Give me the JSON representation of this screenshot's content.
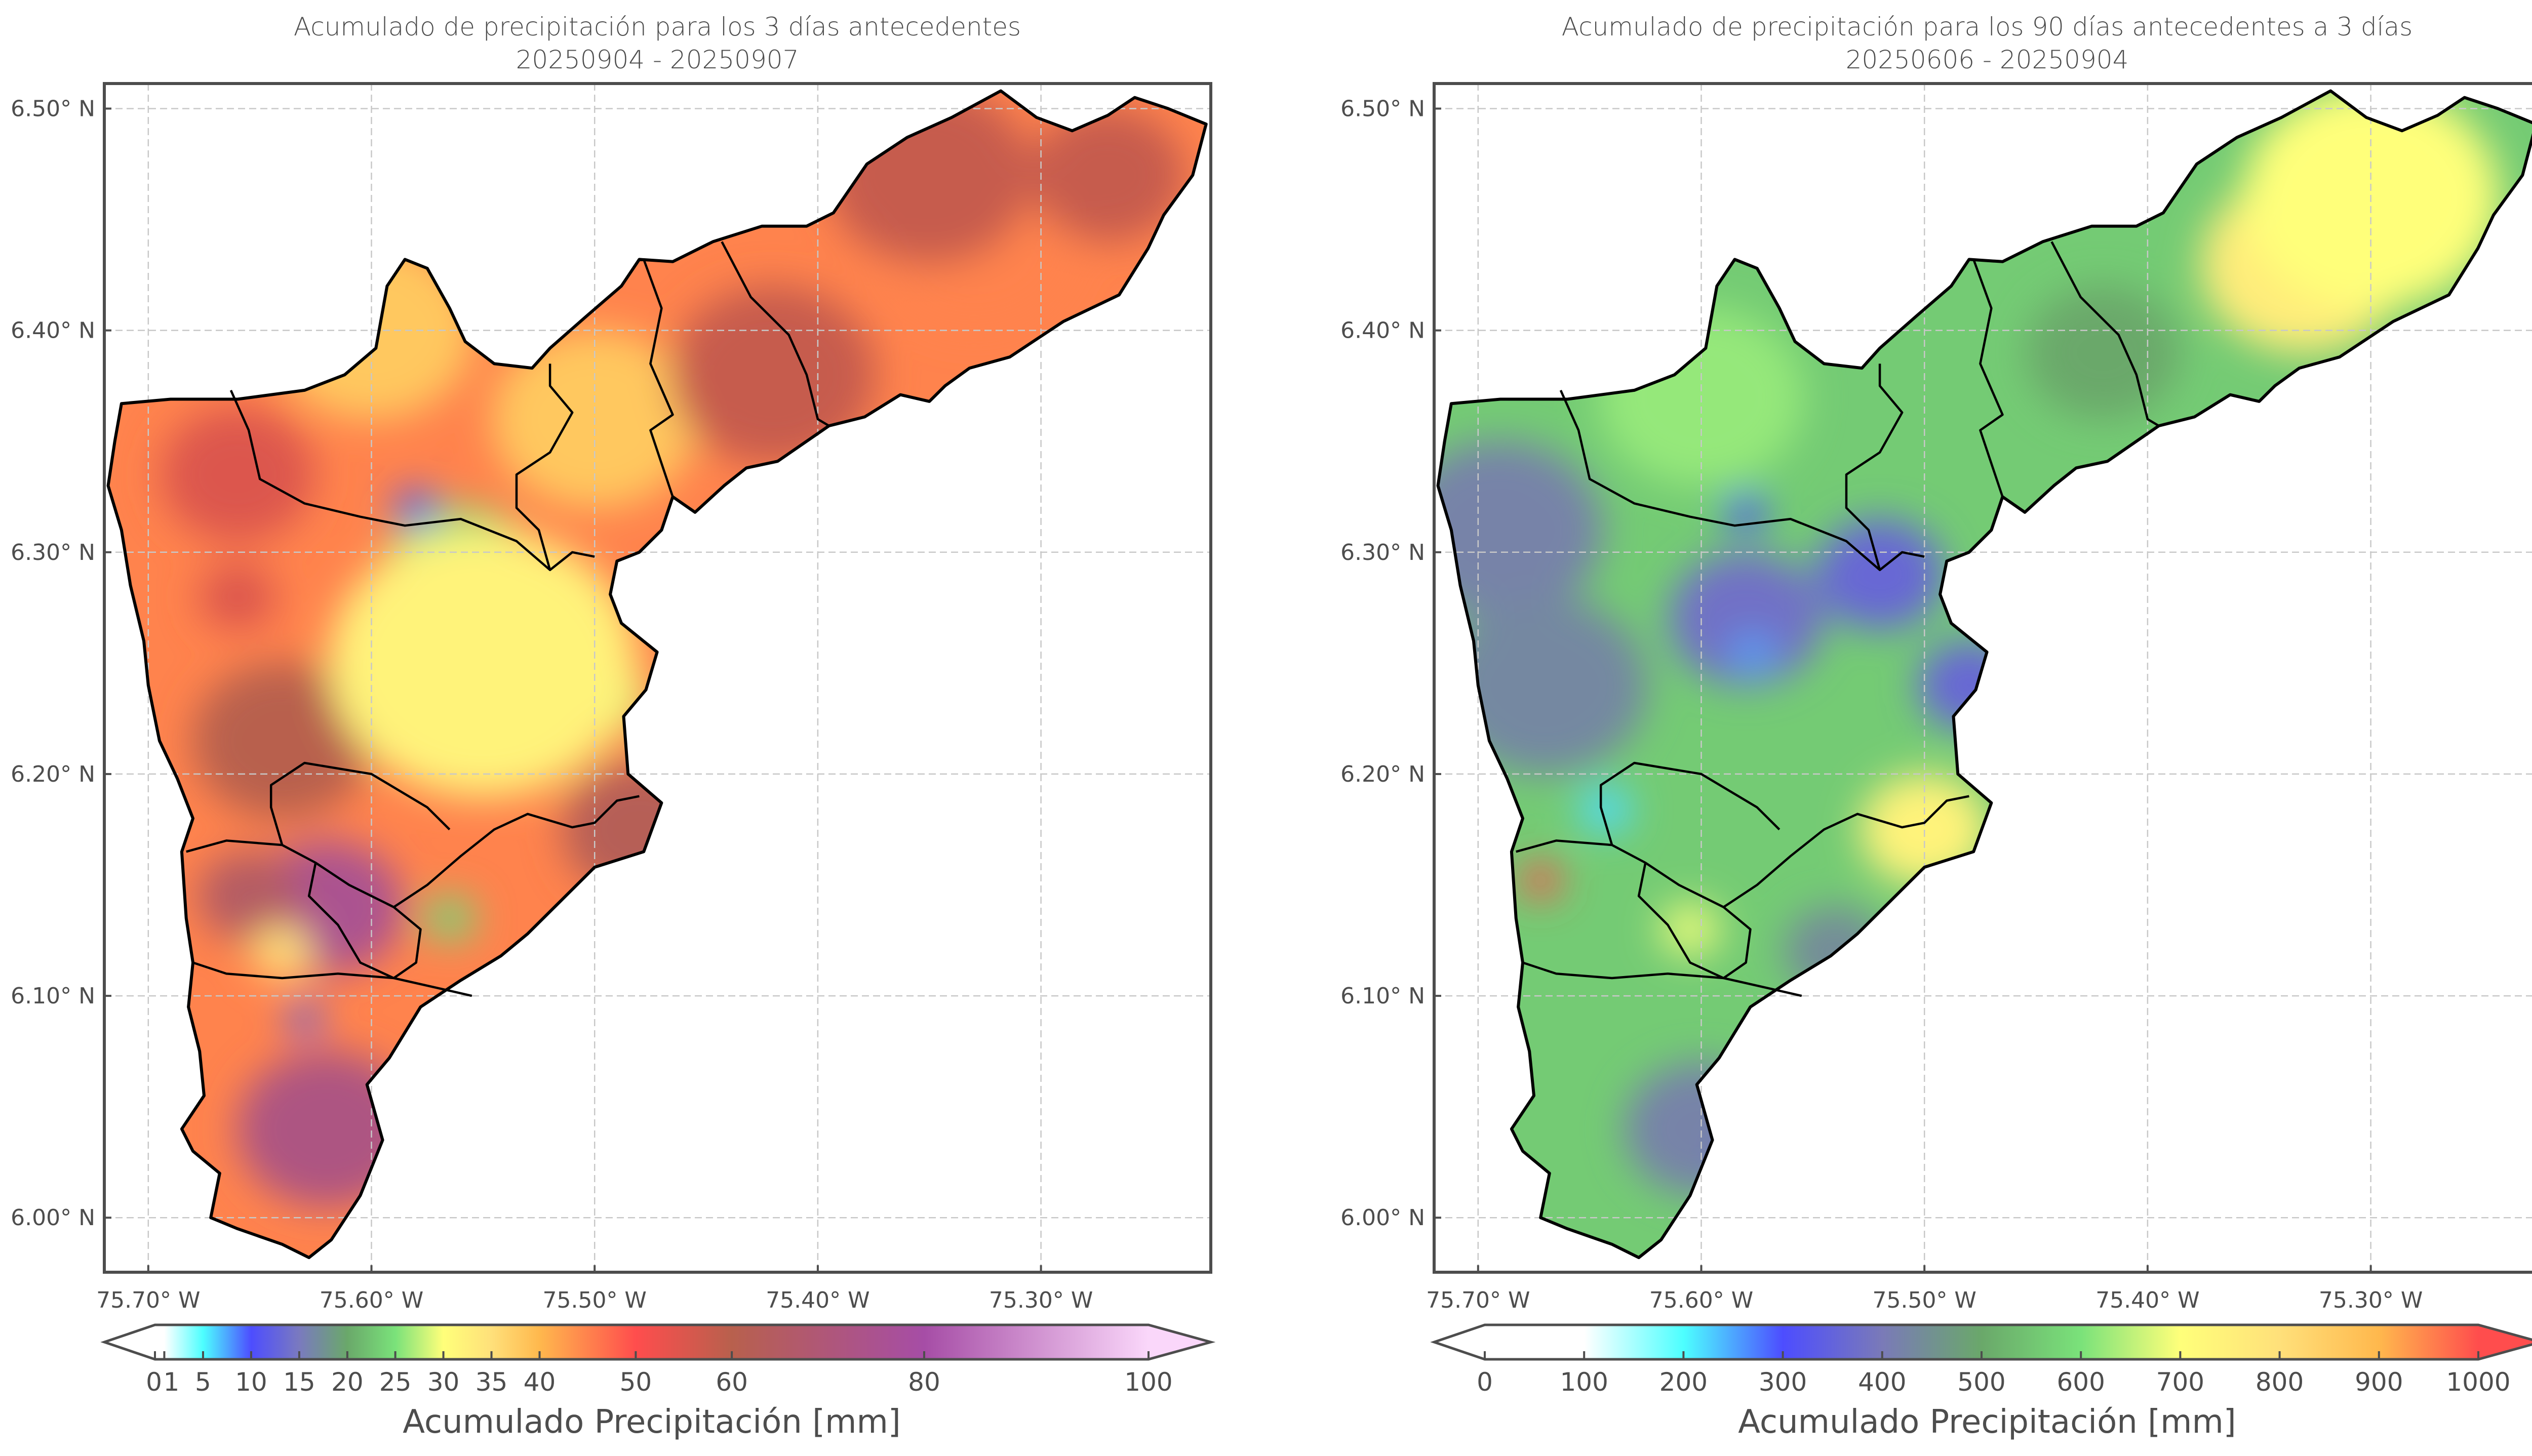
{
  "chart_data": [
    {
      "type": "heatmap",
      "panel": "left",
      "title": "Acumulado de precipitación para los 3 días antecedentes",
      "subtitle": "20250904 - 20250907",
      "xlabel": "",
      "ylabel": "",
      "xlim": [
        -75.7197,
        -75.2239
      ],
      "ylim": [
        5.9754,
        6.5113
      ],
      "x_ticks": [
        -75.7,
        -75.6,
        -75.5,
        -75.4,
        -75.3
      ],
      "x_tick_labels": [
        "75.70° W",
        "75.60° W",
        "75.50° W",
        "75.40° W",
        "75.30° W"
      ],
      "y_ticks": [
        6.5,
        6.4,
        6.3,
        6.2,
        6.1,
        6.0
      ],
      "y_tick_labels": [
        "6.50° N",
        "6.40° N",
        "6.30° N",
        "6.20° N",
        "6.10° N",
        "6.00° N"
      ],
      "grid": true,
      "colorbar": {
        "label": "Acumulado Precipitación [mm]",
        "extend": "both",
        "range": [
          0,
          100
        ],
        "ticks": [
          0,
          1,
          5,
          10,
          15,
          20,
          25,
          30,
          35,
          40,
          50,
          60,
          80,
          100
        ],
        "tick_labels": [
          "0",
          "1",
          "5",
          "10",
          "15",
          "20",
          "25",
          "30",
          "35",
          "40",
          "50",
          "60",
          "80",
          "100"
        ],
        "stops": [
          {
            "v": 0,
            "c": "#ffffff"
          },
          {
            "v": 1,
            "c": "#ffffff"
          },
          {
            "v": 5,
            "c": "#4dffff"
          },
          {
            "v": 10,
            "c": "#4d4dff"
          },
          {
            "v": 15,
            "c": "#7a7abf"
          },
          {
            "v": 20,
            "c": "#6aa86a"
          },
          {
            "v": 25,
            "c": "#7ae27a"
          },
          {
            "v": 30,
            "c": "#ffff7a"
          },
          {
            "v": 35,
            "c": "#ffe07a"
          },
          {
            "v": 40,
            "c": "#ffb84d"
          },
          {
            "v": 50,
            "c": "#ff4d4d"
          },
          {
            "v": 60,
            "c": "#b8604d"
          },
          {
            "v": 80,
            "c": "#a64da6"
          },
          {
            "v": 100,
            "c": "#fad7fa"
          }
        ],
        "over_color": "#fad7fa",
        "under_color": "#ffffff"
      },
      "field_background_mm": 45,
      "field_features": [
        {
          "lon": -75.66,
          "lat": 6.335,
          "mm": 55,
          "r": 0.03
        },
        {
          "lon": -75.66,
          "lat": 6.28,
          "mm": 55,
          "r": 0.015
        },
        {
          "lon": -75.64,
          "lat": 6.215,
          "mm": 60,
          "r": 0.035
        },
        {
          "lon": -75.56,
          "lat": 6.29,
          "mm": 25,
          "r": 0.03
        },
        {
          "lon": -75.555,
          "lat": 6.26,
          "mm": 22,
          "r": 0.025
        },
        {
          "lon": -75.58,
          "lat": 6.32,
          "mm": 10,
          "r": 0.008
        },
        {
          "lon": -75.56,
          "lat": 6.23,
          "mm": 28,
          "r": 0.02
        },
        {
          "lon": -75.5,
          "lat": 6.235,
          "mm": 28,
          "r": 0.02
        },
        {
          "lon": -75.55,
          "lat": 6.25,
          "mm": 32,
          "r": 0.06
        },
        {
          "lon": -75.6,
          "lat": 6.4,
          "mm": 38,
          "r": 0.04
        },
        {
          "lon": -75.5,
          "lat": 6.36,
          "mm": 38,
          "r": 0.04
        },
        {
          "lon": -75.42,
          "lat": 6.38,
          "mm": 58,
          "r": 0.04
        },
        {
          "lon": -75.33,
          "lat": 6.44,
          "mm": 45,
          "r": 0.04
        },
        {
          "lon": -75.35,
          "lat": 6.47,
          "mm": 58,
          "r": 0.04
        },
        {
          "lon": -75.27,
          "lat": 6.47,
          "mm": 58,
          "r": 0.03
        },
        {
          "lon": -75.62,
          "lat": 6.14,
          "mm": 75,
          "r": 0.03
        },
        {
          "lon": -75.655,
          "lat": 6.145,
          "mm": 65,
          "r": 0.02
        },
        {
          "lon": -75.48,
          "lat": 6.175,
          "mm": 62,
          "r": 0.03
        },
        {
          "lon": -75.565,
          "lat": 6.135,
          "mm": 24,
          "r": 0.01
        },
        {
          "lon": -75.63,
          "lat": 6.09,
          "mm": 12,
          "r": 0.007
        },
        {
          "lon": -75.62,
          "lat": 6.04,
          "mm": 72,
          "r": 0.035
        },
        {
          "lon": -75.64,
          "lat": 6.12,
          "mm": 35,
          "r": 0.012
        }
      ]
    },
    {
      "type": "heatmap",
      "panel": "right",
      "title": "Acumulado de precipitación para los 90 días antecedentes a 3 días",
      "subtitle": "20250606 - 20250904",
      "xlabel": "",
      "ylabel": "",
      "xlim": [
        -75.7197,
        -75.2239
      ],
      "ylim": [
        5.9754,
        6.5113
      ],
      "x_ticks": [
        -75.7,
        -75.6,
        -75.5,
        -75.4,
        -75.3
      ],
      "x_tick_labels": [
        "75.70° W",
        "75.60° W",
        "75.50° W",
        "75.40° W",
        "75.30° W"
      ],
      "y_ticks": [
        6.5,
        6.4,
        6.3,
        6.2,
        6.1,
        6.0
      ],
      "y_tick_labels": [
        "6.50° N",
        "6.40° N",
        "6.30° N",
        "6.20° N",
        "6.10° N",
        "6.00° N"
      ],
      "grid": true,
      "colorbar": {
        "label": "Acumulado Precipitación [mm]",
        "extend": "both",
        "range": [
          0,
          1000
        ],
        "ticks": [
          0,
          100,
          200,
          300,
          400,
          500,
          600,
          700,
          800,
          900,
          1000
        ],
        "tick_labels": [
          "0",
          "100",
          "200",
          "300",
          "400",
          "500",
          "600",
          "700",
          "800",
          "900",
          "1000"
        ],
        "stops": [
          {
            "v": 0,
            "c": "#ffffff"
          },
          {
            "v": 100,
            "c": "#ffffff"
          },
          {
            "v": 200,
            "c": "#4dffff"
          },
          {
            "v": 300,
            "c": "#4d4dff"
          },
          {
            "v": 400,
            "c": "#7a7ab8"
          },
          {
            "v": 500,
            "c": "#6aa86a"
          },
          {
            "v": 600,
            "c": "#7ae27a"
          },
          {
            "v": 700,
            "c": "#ffff7a"
          },
          {
            "v": 800,
            "c": "#ffe07a"
          },
          {
            "v": 900,
            "c": "#ffb84d"
          },
          {
            "v": 1000,
            "c": "#ff4d4d"
          }
        ],
        "over_color": "#ff4d4d",
        "under_color": "#ffffff"
      },
      "field_background_mm": 560,
      "field_features": [
        {
          "lon": -75.69,
          "lat": 6.31,
          "mm": 420,
          "r": 0.04
        },
        {
          "lon": -75.67,
          "lat": 6.24,
          "mm": 430,
          "r": 0.04
        },
        {
          "lon": -75.58,
          "lat": 6.27,
          "mm": 380,
          "r": 0.03
        },
        {
          "lon": -75.52,
          "lat": 6.29,
          "mm": 360,
          "r": 0.025
        },
        {
          "lon": -75.48,
          "lat": 6.24,
          "mm": 360,
          "r": 0.02
        },
        {
          "lon": -75.577,
          "lat": 6.254,
          "mm": 250,
          "r": 0.008
        },
        {
          "lon": -75.58,
          "lat": 6.318,
          "mm": 300,
          "r": 0.008
        },
        {
          "lon": -75.643,
          "lat": 6.184,
          "mm": 220,
          "r": 0.01
        },
        {
          "lon": -75.6,
          "lat": 6.37,
          "mm": 620,
          "r": 0.04
        },
        {
          "lon": -75.33,
          "lat": 6.43,
          "mm": 760,
          "r": 0.04
        },
        {
          "lon": -75.3,
          "lat": 6.46,
          "mm": 700,
          "r": 0.05
        },
        {
          "lon": -75.5,
          "lat": 6.175,
          "mm": 740,
          "r": 0.025
        },
        {
          "lon": -75.605,
          "lat": 6.13,
          "mm": 680,
          "r": 0.012
        },
        {
          "lon": -75.672,
          "lat": 6.152,
          "mm": 1000,
          "r": 0.008
        },
        {
          "lon": -75.54,
          "lat": 6.12,
          "mm": 440,
          "r": 0.02
        },
        {
          "lon": -75.6,
          "lat": 6.04,
          "mm": 420,
          "r": 0.03
        },
        {
          "lon": -75.575,
          "lat": 6.025,
          "mm": 330,
          "r": 0.012
        },
        {
          "lon": -75.42,
          "lat": 6.39,
          "mm": 500,
          "r": 0.03
        }
      ]
    }
  ],
  "colors": {
    "frame": "#4d4d4d",
    "grid": "#c8c8c8",
    "basin_outline": "#000000"
  },
  "basin_outline": [
    [
      -75.712,
      6.367
    ],
    [
      -75.69,
      6.369
    ],
    [
      -75.66,
      6.369
    ],
    [
      -75.63,
      6.373
    ],
    [
      -75.612,
      6.38
    ],
    [
      -75.598,
      6.392
    ],
    [
      -75.593,
      6.42
    ],
    [
      -75.585,
      6.432
    ],
    [
      -75.575,
      6.428
    ],
    [
      -75.565,
      6.41
    ],
    [
      -75.558,
      6.395
    ],
    [
      -75.545,
      6.385
    ],
    [
      -75.528,
      6.383
    ],
    [
      -75.52,
      6.392
    ],
    [
      -75.503,
      6.407
    ],
    [
      -75.488,
      6.42
    ],
    [
      -75.48,
      6.432
    ],
    [
      -75.465,
      6.431
    ],
    [
      -75.447,
      6.44
    ],
    [
      -75.425,
      6.447
    ],
    [
      -75.405,
      6.447
    ],
    [
      -75.393,
      6.453
    ],
    [
      -75.378,
      6.475
    ],
    [
      -75.36,
      6.487
    ],
    [
      -75.34,
      6.496
    ],
    [
      -75.318,
      6.508
    ],
    [
      -75.302,
      6.496
    ],
    [
      -75.286,
      6.49
    ],
    [
      -75.27,
      6.497
    ],
    [
      -75.258,
      6.505
    ],
    [
      -75.243,
      6.5
    ],
    [
      -75.226,
      6.493
    ],
    [
      -75.232,
      6.47
    ],
    [
      -75.245,
      6.452
    ],
    [
      -75.252,
      6.437
    ],
    [
      -75.265,
      6.416
    ],
    [
      -75.29,
      6.404
    ],
    [
      -75.314,
      6.388
    ],
    [
      -75.332,
      6.383
    ],
    [
      -75.343,
      6.375
    ],
    [
      -75.35,
      6.368
    ],
    [
      -75.363,
      6.371
    ],
    [
      -75.379,
      6.361
    ],
    [
      -75.395,
      6.357
    ],
    [
      -75.418,
      6.341
    ],
    [
      -75.432,
      6.338
    ],
    [
      -75.442,
      6.33
    ],
    [
      -75.455,
      6.318
    ],
    [
      -75.465,
      6.325
    ],
    [
      -75.47,
      6.31
    ],
    [
      -75.48,
      6.3
    ],
    [
      -75.49,
      6.296
    ],
    [
      -75.493,
      6.281
    ],
    [
      -75.488,
      6.268
    ],
    [
      -75.472,
      6.255
    ],
    [
      -75.477,
      6.238
    ],
    [
      -75.487,
      6.226
    ],
    [
      -75.485,
      6.2
    ],
    [
      -75.47,
      6.187
    ],
    [
      -75.478,
      6.165
    ],
    [
      -75.5,
      6.158
    ],
    [
      -75.515,
      6.143
    ],
    [
      -75.53,
      6.128
    ],
    [
      -75.542,
      6.118
    ],
    [
      -75.56,
      6.107
    ],
    [
      -75.578,
      6.095
    ],
    [
      -75.592,
      6.072
    ],
    [
      -75.602,
      6.06
    ],
    [
      -75.595,
      6.035
    ],
    [
      -75.605,
      6.01
    ],
    [
      -75.618,
      5.99
    ],
    [
      -75.628,
      5.982
    ],
    [
      -75.64,
      5.988
    ],
    [
      -75.66,
      5.995
    ],
    [
      -75.672,
      6.0
    ],
    [
      -75.668,
      6.02
    ],
    [
      -75.68,
      6.03
    ],
    [
      -75.685,
      6.04
    ],
    [
      -75.675,
      6.055
    ],
    [
      -75.677,
      6.075
    ],
    [
      -75.682,
      6.095
    ],
    [
      -75.68,
      6.115
    ],
    [
      -75.683,
      6.135
    ],
    [
      -75.685,
      6.165
    ],
    [
      -75.68,
      6.18
    ],
    [
      -75.687,
      6.198
    ],
    [
      -75.695,
      6.215
    ],
    [
      -75.7,
      6.24
    ],
    [
      -75.702,
      6.26
    ],
    [
      -75.708,
      6.285
    ],
    [
      -75.712,
      6.31
    ],
    [
      -75.718,
      6.33
    ],
    [
      -75.715,
      6.35
    ]
  ],
  "subbasin_lines": [
    [
      [
        -75.663,
        6.373
      ],
      [
        -75.655,
        6.355
      ],
      [
        -75.65,
        6.333
      ],
      [
        -75.63,
        6.322
      ],
      [
        -75.605,
        6.316
      ],
      [
        -75.585,
        6.312
      ],
      [
        -75.56,
        6.315
      ],
      [
        -75.535,
        6.305
      ],
      [
        -75.52,
        6.292
      ],
      [
        -75.51,
        6.3
      ],
      [
        -75.5,
        6.298
      ]
    ],
    [
      [
        -75.52,
        6.292
      ],
      [
        -75.525,
        6.31
      ],
      [
        -75.535,
        6.32
      ],
      [
        -75.535,
        6.335
      ],
      [
        -75.52,
        6.345
      ],
      [
        -75.51,
        6.363
      ],
      [
        -75.52,
        6.375
      ],
      [
        -75.52,
        6.385
      ]
    ],
    [
      [
        -75.465,
        6.325
      ],
      [
        -75.47,
        6.34
      ],
      [
        -75.475,
        6.355
      ],
      [
        -75.465,
        6.362
      ],
      [
        -75.475,
        6.385
      ],
      [
        -75.47,
        6.41
      ],
      [
        -75.478,
        6.432
      ]
    ],
    [
      [
        -75.443,
        6.44
      ],
      [
        -75.43,
        6.415
      ],
      [
        -75.413,
        6.398
      ],
      [
        -75.405,
        6.38
      ],
      [
        -75.4,
        6.36
      ],
      [
        -75.395,
        6.357
      ]
    ],
    [
      [
        -75.683,
        6.165
      ],
      [
        -75.665,
        6.17
      ],
      [
        -75.64,
        6.168
      ],
      [
        -75.625,
        6.16
      ],
      [
        -75.61,
        6.15
      ],
      [
        -75.59,
        6.14
      ],
      [
        -75.575,
        6.15
      ],
      [
        -75.56,
        6.163
      ],
      [
        -75.545,
        6.175
      ],
      [
        -75.53,
        6.182
      ],
      [
        -75.51,
        6.176
      ],
      [
        -75.5,
        6.178
      ],
      [
        -75.49,
        6.188
      ],
      [
        -75.48,
        6.19
      ]
    ],
    [
      [
        -75.64,
        6.168
      ],
      [
        -75.645,
        6.185
      ],
      [
        -75.645,
        6.195
      ],
      [
        -75.63,
        6.205
      ],
      [
        -75.6,
        6.2
      ],
      [
        -75.575,
        6.185
      ],
      [
        -75.565,
        6.175
      ]
    ],
    [
      [
        -75.625,
        6.16
      ],
      [
        -75.628,
        6.145
      ],
      [
        -75.615,
        6.132
      ],
      [
        -75.605,
        6.115
      ],
      [
        -75.59,
        6.108
      ],
      [
        -75.58,
        6.115
      ],
      [
        -75.578,
        6.13
      ],
      [
        -75.59,
        6.14
      ]
    ],
    [
      [
        -75.68,
        6.115
      ],
      [
        -75.665,
        6.11
      ],
      [
        -75.64,
        6.108
      ],
      [
        -75.615,
        6.11
      ],
      [
        -75.59,
        6.108
      ],
      [
        -75.568,
        6.103
      ],
      [
        -75.555,
        6.1
      ]
    ]
  ]
}
